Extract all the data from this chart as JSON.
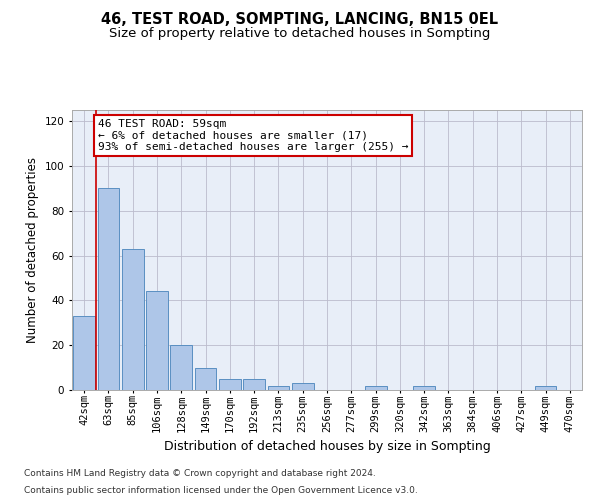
{
  "title": "46, TEST ROAD, SOMPTING, LANCING, BN15 0EL",
  "subtitle": "Size of property relative to detached houses in Sompting",
  "xlabel": "Distribution of detached houses by size in Sompting",
  "ylabel": "Number of detached properties",
  "categories": [
    "42sqm",
    "63sqm",
    "85sqm",
    "106sqm",
    "128sqm",
    "149sqm",
    "170sqm",
    "192sqm",
    "213sqm",
    "235sqm",
    "256sqm",
    "277sqm",
    "299sqm",
    "320sqm",
    "342sqm",
    "363sqm",
    "384sqm",
    "406sqm",
    "427sqm",
    "449sqm",
    "470sqm"
  ],
  "values": [
    33,
    90,
    63,
    44,
    20,
    10,
    5,
    5,
    2,
    3,
    0,
    0,
    2,
    0,
    2,
    0,
    0,
    0,
    0,
    2,
    0
  ],
  "bar_color": "#aec6e8",
  "bar_edge_color": "#5a8fc2",
  "bar_linewidth": 0.7,
  "grid_color": "#bbbbcc",
  "plot_bg_color": "#e8eef8",
  "fig_bg_color": "#ffffff",
  "annotation_line1": "46 TEST ROAD: 59sqm",
  "annotation_line2": "← 6% of detached houses are smaller (17)",
  "annotation_line3": "93% of semi-detached houses are larger (255) →",
  "annotation_box_facecolor": "#ffffff",
  "annotation_box_edgecolor": "#cc0000",
  "vline_x": 0.5,
  "vline_color": "#cc0000",
  "vline_lw": 1.2,
  "ylim": [
    0,
    125
  ],
  "yticks": [
    0,
    20,
    40,
    60,
    80,
    100,
    120
  ],
  "title_fontsize": 10.5,
  "subtitle_fontsize": 9.5,
  "xlabel_fontsize": 9,
  "ylabel_fontsize": 8.5,
  "tick_fontsize": 7.5,
  "annot_fontsize": 8,
  "footer_fontsize": 6.5,
  "footer_line1": "Contains HM Land Registry data © Crown copyright and database right 2024.",
  "footer_line2": "Contains public sector information licensed under the Open Government Licence v3.0."
}
